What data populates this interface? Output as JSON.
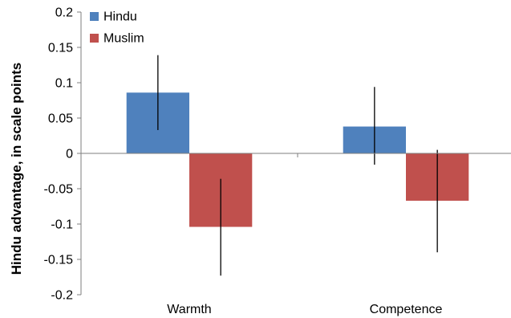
{
  "chart_data": {
    "type": "bar",
    "categories": [
      "Warmth",
      "Competence"
    ],
    "series": [
      {
        "name": "Hindu",
        "color": "#4f81bd",
        "values": [
          0.086,
          0.038
        ],
        "error_low": [
          0.033,
          -0.016
        ],
        "error_high": [
          0.139,
          0.094
        ]
      },
      {
        "name": "Muslim",
        "color": "#c0504d",
        "values": [
          -0.104,
          -0.067
        ],
        "error_low": [
          -0.173,
          -0.14
        ],
        "error_high": [
          -0.036,
          0.005
        ]
      }
    ],
    "ylabel": "Hindu advantage, in scale points",
    "ylim": [
      -0.2,
      0.2
    ],
    "yticks": [
      "0.2",
      "0.15",
      "0.1",
      "0.05",
      "0",
      "-0.05",
      "-0.1",
      "-0.15",
      "-0.2"
    ],
    "ytick_values": [
      0.2,
      0.15,
      0.1,
      0.05,
      0,
      -0.05,
      -0.1,
      -0.15,
      -0.2
    ],
    "grid": false,
    "legend_position": "top-left"
  }
}
